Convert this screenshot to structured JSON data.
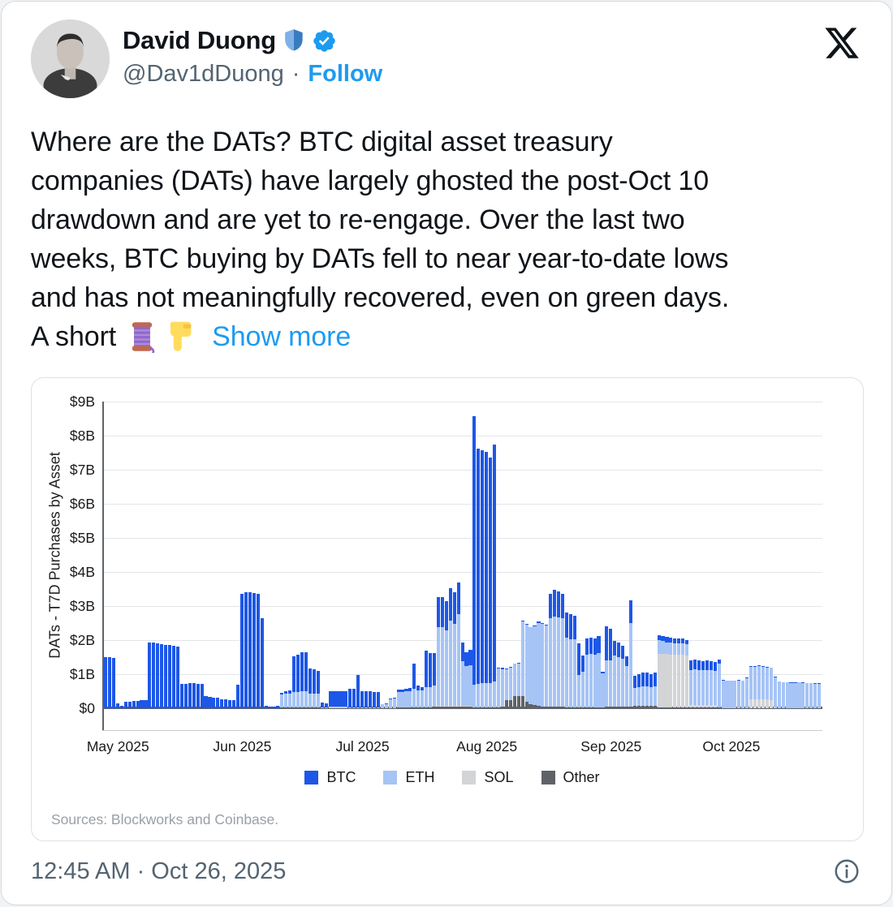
{
  "post": {
    "display_name": "David Duong",
    "handle": "@Dav1dDuong",
    "separator": "·",
    "follow_label": "Follow",
    "name_icons": [
      "shield-emoji",
      "verified-badge"
    ],
    "body_lines": [
      "Where are the DATs? BTC digital asset treasury",
      "companies (DATs) have largely ghosted the post-Oct 10",
      "drawdown and are yet to re-engage. Over the last two",
      "weeks, BTC buying by DATs fell to near year-to-date lows",
      "and has not meaningfully recovered, even on green days."
    ],
    "body_last_line_text": "A short",
    "body_last_line_emojis": [
      "thread-spool-emoji",
      "backhand-index-pointing-down-emoji"
    ],
    "show_more_label": "Show more",
    "timestamp": "12:45 AM · Oct 26, 2025"
  },
  "chart_data": {
    "type": "bar",
    "stacked": true,
    "ylabel": "DATs - T7D Purchases by Asset",
    "ylim": [
      0,
      9
    ],
    "y_ticks": [
      "$0",
      "$1B",
      "$2B",
      "$3B",
      "$4B",
      "$5B",
      "$6B",
      "$7B",
      "$8B",
      "$9B"
    ],
    "x_month_labels": [
      "May 2025",
      "Jun 2025",
      "Jul 2025",
      "Aug 2025",
      "Sep 2025",
      "Oct 2025"
    ],
    "x_month_start_day": [
      0,
      31,
      61,
      92,
      123,
      153
    ],
    "grid": true,
    "legend_position": "bottom-center",
    "source_note": "Sources: Blockworks and Coinbase.",
    "series": [
      {
        "name": "BTC",
        "color": "#1d57e8"
      },
      {
        "name": "ETH",
        "color": "#a6c4f6"
      },
      {
        "name": "SOL",
        "color": "#d3d4d6"
      },
      {
        "name": "Other",
        "color": "#5f6368"
      }
    ],
    "unit": "billions USD, values per day [BTC, ETH, SOL, Other]",
    "days": [
      [
        1.5,
        0,
        0,
        0
      ],
      [
        1.5,
        0,
        0,
        0
      ],
      [
        1.48,
        0,
        0,
        0
      ],
      [
        0.15,
        0,
        0,
        0
      ],
      [
        0.08,
        0,
        0,
        0
      ],
      [
        0.2,
        0,
        0,
        0
      ],
      [
        0.2,
        0,
        0,
        0
      ],
      [
        0.22,
        0,
        0,
        0
      ],
      [
        0.22,
        0,
        0,
        0
      ],
      [
        0.25,
        0,
        0,
        0
      ],
      [
        0.25,
        0,
        0,
        0
      ],
      [
        1.92,
        0,
        0,
        0
      ],
      [
        1.92,
        0,
        0,
        0
      ],
      [
        1.9,
        0,
        0,
        0
      ],
      [
        1.88,
        0,
        0,
        0
      ],
      [
        1.85,
        0,
        0,
        0
      ],
      [
        1.85,
        0,
        0,
        0
      ],
      [
        1.83,
        0,
        0,
        0
      ],
      [
        1.82,
        0,
        0,
        0
      ],
      [
        0.72,
        0,
        0,
        0
      ],
      [
        0.72,
        0,
        0,
        0
      ],
      [
        0.73,
        0,
        0,
        0
      ],
      [
        0.73,
        0,
        0,
        0
      ],
      [
        0.71,
        0,
        0,
        0
      ],
      [
        0.71,
        0,
        0,
        0
      ],
      [
        0.35,
        0,
        0,
        0
      ],
      [
        0.33,
        0,
        0,
        0
      ],
      [
        0.3,
        0,
        0,
        0
      ],
      [
        0.3,
        0,
        0,
        0
      ],
      [
        0.27,
        0,
        0,
        0
      ],
      [
        0.26,
        0,
        0,
        0
      ],
      [
        0.25,
        0,
        0,
        0
      ],
      [
        0.25,
        0,
        0,
        0
      ],
      [
        0.68,
        0,
        0,
        0
      ],
      [
        3.35,
        0,
        0,
        0
      ],
      [
        3.4,
        0,
        0,
        0
      ],
      [
        3.4,
        0,
        0,
        0
      ],
      [
        3.38,
        0,
        0,
        0
      ],
      [
        3.36,
        0,
        0,
        0
      ],
      [
        2.65,
        0,
        0,
        0
      ],
      [
        0.06,
        0,
        0,
        0
      ],
      [
        0.05,
        0,
        0,
        0
      ],
      [
        0.05,
        0,
        0,
        0
      ],
      [
        0.06,
        0,
        0,
        0
      ],
      [
        0.06,
        0.38,
        0,
        0.02
      ],
      [
        0.07,
        0.4,
        0,
        0.02
      ],
      [
        0.08,
        0.42,
        0,
        0.02
      ],
      [
        1.05,
        0.45,
        0,
        0.03
      ],
      [
        1.1,
        0.45,
        0,
        0.03
      ],
      [
        1.15,
        0.46,
        0,
        0.03
      ],
      [
        1.15,
        0.46,
        0,
        0.03
      ],
      [
        0.72,
        0.42,
        0,
        0.02
      ],
      [
        0.7,
        0.42,
        0,
        0.02
      ],
      [
        0.68,
        0.4,
        0,
        0.02
      ],
      [
        0.14,
        0.02,
        0,
        0
      ],
      [
        0.12,
        0.02,
        0,
        0
      ],
      [
        0.45,
        0.02,
        0.03,
        0
      ],
      [
        0.45,
        0.02,
        0.03,
        0
      ],
      [
        0.46,
        0.02,
        0.03,
        0
      ],
      [
        0.46,
        0.02,
        0.03,
        0
      ],
      [
        0.45,
        0.02,
        0.03,
        0
      ],
      [
        0.55,
        0.02,
        0,
        0
      ],
      [
        0.56,
        0.02,
        0,
        0
      ],
      [
        0.95,
        0.03,
        0,
        0
      ],
      [
        0.48,
        0.02,
        0,
        0
      ],
      [
        0.47,
        0.02,
        0,
        0
      ],
      [
        0.47,
        0.02,
        0,
        0
      ],
      [
        0.46,
        0.02,
        0,
        0
      ],
      [
        0.46,
        0.02,
        0,
        0
      ],
      [
        0.02,
        0.1,
        0,
        0.01
      ],
      [
        0.02,
        0.12,
        0,
        0.01
      ],
      [
        0.03,
        0.25,
        0,
        0.01
      ],
      [
        0.03,
        0.27,
        0,
        0.01
      ],
      [
        0.08,
        0.45,
        0,
        0.02
      ],
      [
        0.08,
        0.46,
        0,
        0.02
      ],
      [
        0.09,
        0.47,
        0,
        0.02
      ],
      [
        0.09,
        0.48,
        0,
        0.02
      ],
      [
        0.72,
        0.55,
        0,
        0.03
      ],
      [
        0.13,
        0.5,
        0,
        0.03
      ],
      [
        0.1,
        0.5,
        0,
        0.03
      ],
      [
        1.05,
        0.6,
        0,
        0.03
      ],
      [
        1.0,
        0.6,
        0,
        0.03
      ],
      [
        0.95,
        0.63,
        0,
        0.04
      ],
      [
        0.88,
        2.3,
        0.04,
        0.04
      ],
      [
        0.88,
        2.3,
        0.04,
        0.04
      ],
      [
        0.86,
        2.2,
        0.04,
        0.04
      ],
      [
        0.95,
        2.5,
        0.04,
        0.04
      ],
      [
        0.93,
        2.4,
        0.04,
        0.04
      ],
      [
        0.92,
        2.68,
        0.04,
        0.04
      ],
      [
        0.56,
        1.3,
        0.04,
        0.04
      ],
      [
        0.42,
        1.15,
        0.04,
        0.04
      ],
      [
        0.45,
        1.18,
        0.04,
        0.04
      ],
      [
        7.9,
        0.65,
        0,
        0.03
      ],
      [
        6.9,
        0.68,
        0,
        0.03
      ],
      [
        6.85,
        0.7,
        0,
        0.03
      ],
      [
        6.8,
        0.7,
        0,
        0.03
      ],
      [
        6.6,
        0.72,
        0,
        0.03
      ],
      [
        6.95,
        0.75,
        0,
        0.03
      ],
      [
        0.03,
        1.15,
        0,
        0.02
      ],
      [
        0.03,
        1.1,
        0,
        0.05
      ],
      [
        0.02,
        0.9,
        0,
        0.25
      ],
      [
        0.02,
        0.95,
        0,
        0.25
      ],
      [
        0.02,
        0.95,
        0,
        0.35
      ],
      [
        0.02,
        0.95,
        0,
        0.36
      ],
      [
        0.02,
        2.2,
        0,
        0.36
      ],
      [
        0.02,
        2.25,
        0,
        0.2
      ],
      [
        0.02,
        2.25,
        0,
        0.12
      ],
      [
        0.03,
        2.3,
        0,
        0.1
      ],
      [
        0.03,
        2.45,
        0,
        0.06
      ],
      [
        0.02,
        2.42,
        0,
        0.05
      ],
      [
        0.02,
        2.38,
        0,
        0.05
      ],
      [
        0.72,
        2.6,
        0,
        0.04
      ],
      [
        0.78,
        2.65,
        0,
        0.04
      ],
      [
        0.76,
        2.62,
        0,
        0.04
      ],
      [
        0.72,
        2.6,
        0,
        0.04
      ],
      [
        0.72,
        2.05,
        0,
        0.03
      ],
      [
        0.73,
        2.0,
        0,
        0.03
      ],
      [
        0.68,
        2.0,
        0,
        0.03
      ],
      [
        0.93,
        0.95,
        0,
        0.03
      ],
      [
        0.48,
        1.05,
        0,
        0.03
      ],
      [
        0.48,
        1.55,
        0,
        0.03
      ],
      [
        0.49,
        1.56,
        0,
        0.03
      ],
      [
        0.48,
        1.55,
        0,
        0.03
      ],
      [
        0.49,
        1.6,
        0,
        0.03
      ],
      [
        0.04,
        1.0,
        0,
        0.03
      ],
      [
        1.0,
        1.35,
        0,
        0.05
      ],
      [
        0.93,
        1.35,
        0,
        0.05
      ],
      [
        0.43,
        1.5,
        0,
        0.05
      ],
      [
        0.42,
        1.46,
        0,
        0.05
      ],
      [
        0.38,
        1.4,
        0,
        0.05
      ],
      [
        0.28,
        1.2,
        0,
        0.04
      ],
      [
        0.68,
        2.45,
        0,
        0.04
      ],
      [
        0.36,
        0.52,
        0,
        0.07
      ],
      [
        0.38,
        0.55,
        0,
        0.07
      ],
      [
        0.4,
        0.58,
        0,
        0.07
      ],
      [
        0.4,
        0.58,
        0,
        0.07
      ],
      [
        0.38,
        0.55,
        0,
        0.07
      ],
      [
        0.4,
        0.58,
        0,
        0.07
      ],
      [
        0.15,
        0.4,
        1.58,
        0.02
      ],
      [
        0.15,
        0.37,
        1.58,
        0.02
      ],
      [
        0.15,
        0.35,
        1.57,
        0.02
      ],
      [
        0.15,
        0.35,
        1.56,
        0.02
      ],
      [
        0.14,
        0.34,
        1.55,
        0.02
      ],
      [
        0.14,
        0.34,
        1.55,
        0.02
      ],
      [
        0.14,
        0.33,
        1.55,
        0.02
      ],
      [
        0.13,
        0.33,
        1.52,
        0.02
      ],
      [
        0.28,
        1.02,
        0.08,
        0.02
      ],
      [
        0.28,
        1.04,
        0.08,
        0.02
      ],
      [
        0.27,
        1.03,
        0.08,
        0.02
      ],
      [
        0.26,
        1.02,
        0.08,
        0.02
      ],
      [
        0.27,
        1.03,
        0.08,
        0.02
      ],
      [
        0.26,
        1.02,
        0.08,
        0.02
      ],
      [
        0.25,
        1.0,
        0.08,
        0.02
      ],
      [
        0.1,
        1.3,
        0,
        0.02
      ],
      [
        0.02,
        0.8,
        0,
        0.01
      ],
      [
        0.01,
        0.8,
        0,
        0.01
      ],
      [
        0.01,
        0.79,
        0,
        0.01
      ],
      [
        0.01,
        0.79,
        0,
        0.01
      ],
      [
        0.01,
        0.81,
        0,
        0.01
      ],
      [
        0.01,
        0.8,
        0,
        0.01
      ],
      [
        0.02,
        0.88,
        0,
        0.01
      ],
      [
        0.02,
        0.95,
        0.25,
        0.01
      ],
      [
        0.02,
        0.96,
        0.25,
        0.01
      ],
      [
        0.02,
        0.98,
        0.25,
        0.01
      ],
      [
        0.02,
        0.96,
        0.25,
        0.01
      ],
      [
        0.02,
        0.94,
        0.25,
        0.01
      ],
      [
        0.02,
        0.93,
        0.24,
        0.01
      ],
      [
        0.01,
        0.88,
        0.02,
        0.01
      ],
      [
        0.01,
        0.77,
        0,
        0.01
      ],
      [
        0.01,
        0.75,
        0,
        0.01
      ],
      [
        0.01,
        0.75,
        0,
        0.01
      ],
      [
        0.01,
        0.74,
        0,
        0.01
      ],
      [
        0.01,
        0.74,
        0,
        0.01
      ],
      [
        0.01,
        0.75,
        0,
        0.01
      ],
      [
        0.01,
        0.74,
        0,
        0.01
      ],
      [
        0.01,
        0.72,
        0,
        0.01
      ],
      [
        0.01,
        0.72,
        0,
        0.01
      ],
      [
        0.01,
        0.71,
        0,
        0.01
      ],
      [
        0.01,
        0.71,
        0,
        0.01
      ]
    ]
  }
}
